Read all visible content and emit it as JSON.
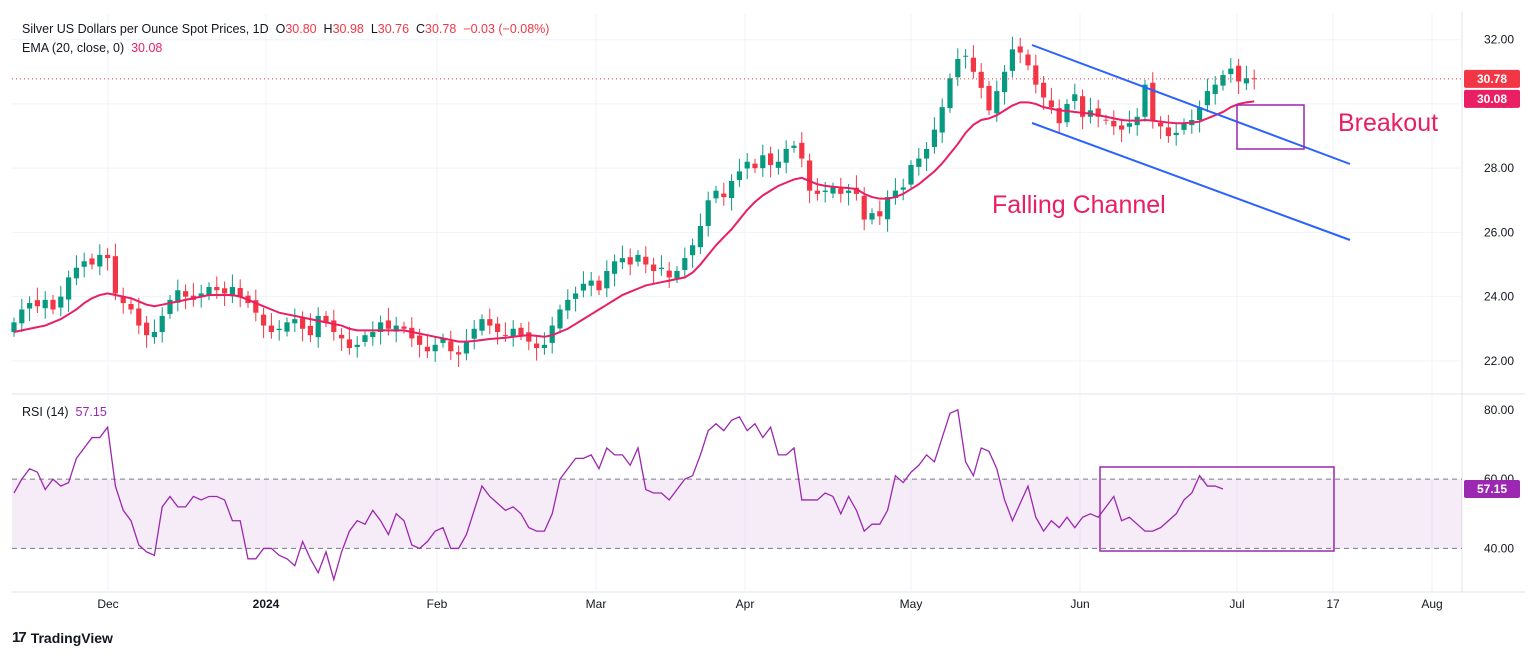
{
  "header": {
    "symbol": "Silver US Dollars per Ounce Spot Prices, 1D",
    "o_label": "O",
    "o_value": "30.80",
    "h_label": "H",
    "h_value": "30.98",
    "l_label": "L",
    "l_value": "30.76",
    "c_label": "C",
    "c_value": "30.78",
    "change": "−0.03 (−0.08%)",
    "ema_label": "EMA (20, close, 0)",
    "ema_value": "30.08",
    "rsi_label": "RSI (14)",
    "rsi_value": "57.15"
  },
  "branding": {
    "logo_text": "TradingView",
    "logo_mark": "17"
  },
  "colors": {
    "up": "#089981",
    "down": "#f23645",
    "ema": "#e91e63",
    "channel": "#2962ff",
    "rsi": "#9c27b0",
    "annotation_text": "#e91e63",
    "box": "#9c27b0"
  },
  "chart_data": [
    {
      "type": "candlestick",
      "title": "Silver US Dollars per Ounce Spot Prices, 1D",
      "xlabels": [
        "Dec",
        "2024",
        "Feb",
        "Mar",
        "Apr",
        "May",
        "Jun",
        "Jul",
        "17",
        "Aug"
      ],
      "price_ticks": [
        "32.00",
        "30.00",
        "28.00",
        "26.00",
        "24.00",
        "22.00"
      ],
      "ylim": [
        21.0,
        32.8
      ],
      "last_price": "30.78",
      "ema_badge": "30.08",
      "close_series": [
        23.2,
        23.6,
        23.8,
        23.7,
        23.9,
        23.6,
        24.0,
        24.6,
        24.9,
        25.1,
        25.0,
        25.3,
        25.2,
        24.1,
        23.8,
        23.6,
        23.1,
        22.8,
        22.9,
        23.4,
        23.9,
        24.2,
        24.0,
        23.9,
        24.1,
        24.3,
        24.2,
        24.1,
        24.3,
        24.0,
        23.8,
        23.5,
        23.1,
        22.9,
        23.0,
        23.2,
        23.3,
        23.0,
        22.8,
        23.4,
        23.2,
        22.9,
        22.7,
        22.4,
        22.5,
        22.8,
        22.9,
        23.2,
        23.0,
        23.1,
        23.0,
        22.7,
        22.5,
        22.3,
        22.5,
        22.7,
        22.3,
        22.2,
        22.6,
        23.0,
        23.3,
        23.1,
        22.9,
        22.8,
        23.0,
        22.8,
        22.6,
        22.4,
        22.5,
        23.1,
        23.6,
        23.9,
        24.1,
        24.4,
        24.5,
        24.2,
        24.8,
        25.1,
        25.2,
        25.0,
        25.3,
        25.0,
        24.8,
        24.9,
        24.6,
        24.8,
        25.2,
        25.6,
        26.2,
        27.0,
        27.3,
        27.1,
        27.6,
        27.9,
        28.2,
        28.0,
        28.4,
        28.1,
        28.2,
        28.6,
        28.7,
        28.3,
        27.3,
        27.2,
        27.3,
        27.4,
        27.2,
        27.3,
        27.2,
        26.4,
        26.6,
        26.5,
        27.1,
        27.3,
        27.4,
        28.1,
        28.3,
        28.6,
        29.2,
        29.9,
        30.8,
        31.4,
        31.5,
        31.0,
        30.5,
        29.8,
        30.4,
        31.0,
        31.7,
        31.6,
        31.2,
        30.6,
        30.2,
        29.9,
        29.4,
        30.0,
        30.3,
        29.6,
        29.8,
        29.6,
        29.5,
        29.3,
        29.2,
        29.4,
        29.6,
        30.6,
        29.5,
        29.3,
        29.0,
        29.1,
        29.4,
        29.5,
        29.9,
        30.4,
        30.6,
        30.9,
        31.1,
        30.7,
        30.8,
        30.78
      ],
      "ema_series": [
        22.9,
        22.95,
        23.0,
        23.05,
        23.1,
        23.2,
        23.3,
        23.45,
        23.6,
        23.8,
        23.95,
        24.05,
        24.1,
        24.05,
        24.0,
        23.95,
        23.85,
        23.75,
        23.7,
        23.75,
        23.8,
        23.85,
        23.9,
        23.95,
        24.0,
        24.05,
        24.05,
        24.05,
        24.05,
        24.0,
        23.9,
        23.8,
        23.7,
        23.6,
        23.5,
        23.45,
        23.4,
        23.35,
        23.3,
        23.25,
        23.2,
        23.15,
        23.1,
        23.0,
        22.95,
        22.95,
        22.95,
        22.95,
        22.95,
        22.95,
        22.95,
        22.9,
        22.85,
        22.8,
        22.75,
        22.7,
        22.65,
        22.6,
        22.6,
        22.62,
        22.65,
        22.68,
        22.7,
        22.72,
        22.75,
        22.78,
        22.8,
        22.78,
        22.75,
        22.8,
        22.9,
        23.0,
        23.15,
        23.3,
        23.45,
        23.6,
        23.75,
        23.9,
        24.05,
        24.15,
        24.25,
        24.35,
        24.4,
        24.45,
        24.5,
        24.55,
        24.6,
        24.75,
        25.0,
        25.3,
        25.6,
        25.85,
        26.1,
        26.4,
        26.7,
        26.95,
        27.15,
        27.3,
        27.45,
        27.55,
        27.65,
        27.7,
        27.6,
        27.5,
        27.45,
        27.42,
        27.4,
        27.38,
        27.35,
        27.2,
        27.1,
        27.05,
        27.05,
        27.1,
        27.2,
        27.35,
        27.5,
        27.7,
        27.9,
        28.15,
        28.45,
        28.75,
        29.1,
        29.35,
        29.5,
        29.55,
        29.65,
        29.8,
        29.95,
        30.05,
        30.05,
        30.0,
        29.9,
        29.85,
        29.8,
        29.78,
        29.75,
        29.72,
        29.7,
        29.65,
        29.6,
        29.55,
        29.5,
        29.48,
        29.48,
        29.5,
        29.48,
        29.45,
        29.42,
        29.4,
        29.4,
        29.42,
        29.45,
        29.55,
        29.65,
        29.75,
        29.9,
        30.0,
        30.05,
        30.08
      ],
      "annotations": {
        "channel_label": "Falling Channel",
        "breakout_label": "Breakout"
      }
    },
    {
      "type": "line",
      "title": "RSI (14)",
      "yticks": [
        "80.00",
        "60.00",
        "40.00"
      ],
      "ylim": [
        28,
        84
      ],
      "guides": [
        60,
        40
      ],
      "current": "57.15",
      "series": [
        56,
        60,
        63,
        62,
        57,
        60,
        58,
        59,
        66,
        69,
        72,
        72,
        75,
        58,
        51,
        48,
        41,
        39,
        38,
        52,
        55,
        52,
        52,
        55,
        54,
        55,
        55,
        54,
        48,
        48,
        37,
        37,
        40,
        40,
        38,
        37,
        35,
        42,
        37,
        33,
        39,
        31,
        39,
        45,
        48,
        47,
        51,
        48,
        44,
        50,
        48,
        41,
        40,
        42,
        45,
        46,
        40,
        40,
        44,
        51,
        58,
        55,
        53,
        51,
        52,
        50,
        46,
        45,
        45,
        50,
        60,
        63,
        66,
        66,
        67,
        63,
        69,
        67,
        67,
        64,
        69,
        57,
        56,
        56,
        54,
        57,
        60,
        61,
        67,
        74,
        76,
        74,
        77,
        78,
        74,
        76,
        72,
        75,
        67,
        67,
        69,
        54,
        54,
        54,
        56,
        55,
        50,
        55,
        51,
        45,
        47,
        47,
        51,
        61,
        59,
        62,
        64,
        67,
        65,
        72,
        79,
        80,
        65,
        61,
        69,
        68,
        63,
        54,
        48,
        53,
        58,
        49,
        45,
        48,
        46,
        49,
        46,
        49,
        50,
        49,
        52,
        55,
        48,
        49,
        47,
        45,
        45,
        46,
        48,
        50,
        54,
        56,
        61,
        58,
        58,
        57.15
      ]
    }
  ]
}
